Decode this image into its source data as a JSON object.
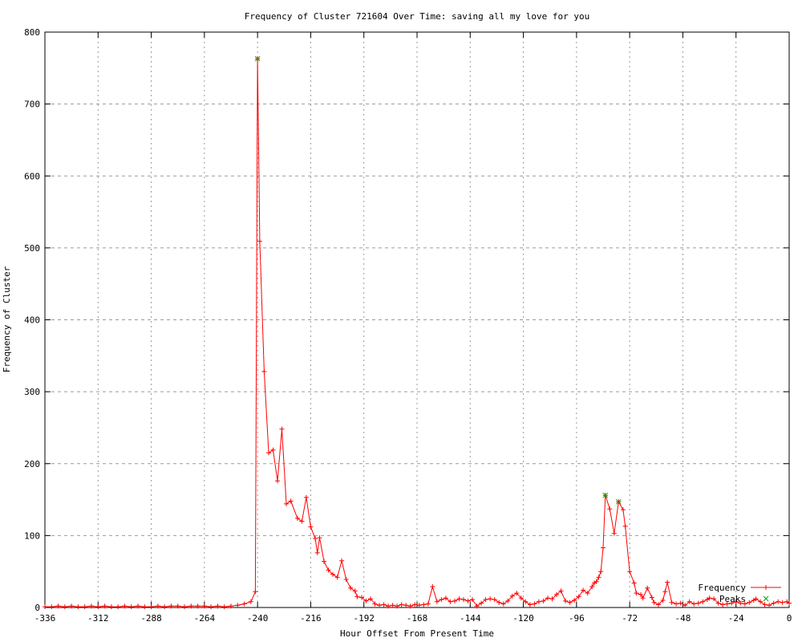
{
  "chart_data": {
    "type": "line",
    "title": "Frequency of Cluster 721604 Over Time: saving all my love for you",
    "xlabel": "Hour Offset From Present Time",
    "ylabel": "Frequency of Cluster",
    "xlim": [
      -336,
      0
    ],
    "ylim": [
      0,
      800
    ],
    "xticks": [
      -336,
      -312,
      -288,
      -264,
      -240,
      -216,
      -192,
      -168,
      -144,
      -120,
      -96,
      -72,
      -48,
      -24,
      0
    ],
    "yticks": [
      0,
      100,
      200,
      300,
      400,
      500,
      600,
      700,
      800
    ],
    "grid": true,
    "legend_position": "bottom-right",
    "colors": {
      "frequency": "#ff0000",
      "peaks": "#00a400",
      "grid": "#9a9a9a",
      "border": "#000000",
      "text": "#000000"
    },
    "legend": [
      {
        "label": "Frequency",
        "marker": "plus-line"
      },
      {
        "label": "Peaks",
        "marker": "cross"
      }
    ],
    "series": [
      {
        "name": "Frequency",
        "style": "linespoints",
        "marker": "plus",
        "color_key": "frequency",
        "points": [
          [
            -336,
            1
          ],
          [
            -333,
            1
          ],
          [
            -330,
            2
          ],
          [
            -327,
            1
          ],
          [
            -324,
            2
          ],
          [
            -321,
            1
          ],
          [
            -318,
            1
          ],
          [
            -315,
            2
          ],
          [
            -312,
            1
          ],
          [
            -309,
            2
          ],
          [
            -306,
            1
          ],
          [
            -303,
            1
          ],
          [
            -300,
            2
          ],
          [
            -297,
            1
          ],
          [
            -294,
            2
          ],
          [
            -291,
            1
          ],
          [
            -288,
            1
          ],
          [
            -285,
            2
          ],
          [
            -282,
            1
          ],
          [
            -279,
            2
          ],
          [
            -276,
            2
          ],
          [
            -273,
            1
          ],
          [
            -270,
            2
          ],
          [
            -267,
            2
          ],
          [
            -264,
            2
          ],
          [
            -261,
            1
          ],
          [
            -258,
            2
          ],
          [
            -255,
            1
          ],
          [
            -252,
            2
          ],
          [
            -249,
            3
          ],
          [
            -246,
            5
          ],
          [
            -243,
            8
          ],
          [
            -241,
            22
          ],
          [
            -240,
            763
          ],
          [
            -239,
            509
          ],
          [
            -237,
            328
          ],
          [
            -235,
            215
          ],
          [
            -233,
            219
          ],
          [
            -231,
            176
          ],
          [
            -229,
            248
          ],
          [
            -227,
            144
          ],
          [
            -225,
            148
          ],
          [
            -222,
            124
          ],
          [
            -220,
            120
          ],
          [
            -218,
            153
          ],
          [
            -216,
            112
          ],
          [
            -214,
            96
          ],
          [
            -213,
            76
          ],
          [
            -212,
            97
          ],
          [
            -210,
            64
          ],
          [
            -208,
            52
          ],
          [
            -206,
            46
          ],
          [
            -204,
            42
          ],
          [
            -202,
            65
          ],
          [
            -200,
            39
          ],
          [
            -198,
            27
          ],
          [
            -196,
            23
          ],
          [
            -195,
            15
          ],
          [
            -193,
            14
          ],
          [
            -191,
            9
          ],
          [
            -189,
            12
          ],
          [
            -187,
            5
          ],
          [
            -185,
            3
          ],
          [
            -183,
            4
          ],
          [
            -181,
            2
          ],
          [
            -179,
            3
          ],
          [
            -177,
            2
          ],
          [
            -175,
            4
          ],
          [
            -173,
            3
          ],
          [
            -171,
            2
          ],
          [
            -169,
            4
          ],
          [
            -167,
            3
          ],
          [
            -165,
            4
          ],
          [
            -163,
            5
          ],
          [
            -161,
            29
          ],
          [
            -159,
            8
          ],
          [
            -157,
            11
          ],
          [
            -155,
            13
          ],
          [
            -153,
            8
          ],
          [
            -151,
            9
          ],
          [
            -149,
            12
          ],
          [
            -147,
            11
          ],
          [
            -145,
            9
          ],
          [
            -143,
            11
          ],
          [
            -141,
            2
          ],
          [
            -139,
            6
          ],
          [
            -137,
            11
          ],
          [
            -135,
            12
          ],
          [
            -133,
            11
          ],
          [
            -131,
            7
          ],
          [
            -129,
            5
          ],
          [
            -127,
            9
          ],
          [
            -125,
            16
          ],
          [
            -123,
            20
          ],
          [
            -121,
            13
          ],
          [
            -119,
            8
          ],
          [
            -117,
            4
          ],
          [
            -115,
            5
          ],
          [
            -113,
            8
          ],
          [
            -111,
            9
          ],
          [
            -109,
            13
          ],
          [
            -107,
            12
          ],
          [
            -105,
            18
          ],
          [
            -103,
            23
          ],
          [
            -101,
            9
          ],
          [
            -99,
            7
          ],
          [
            -97,
            10
          ],
          [
            -95,
            15
          ],
          [
            -93,
            24
          ],
          [
            -91,
            20
          ],
          [
            -89,
            29
          ],
          [
            -88,
            34
          ],
          [
            -87,
            36
          ],
          [
            -86,
            42
          ],
          [
            -85,
            50
          ],
          [
            -84,
            83
          ],
          [
            -83,
            156
          ],
          [
            -81,
            137
          ],
          [
            -79,
            103
          ],
          [
            -77,
            147
          ],
          [
            -75,
            136
          ],
          [
            -74,
            113
          ],
          [
            -72,
            50
          ],
          [
            -70,
            34
          ],
          [
            -69,
            20
          ],
          [
            -67,
            18
          ],
          [
            -66,
            13
          ],
          [
            -64,
            27
          ],
          [
            -62,
            14
          ],
          [
            -61,
            7
          ],
          [
            -59,
            4
          ],
          [
            -57,
            10
          ],
          [
            -56,
            22
          ],
          [
            -55,
            35
          ],
          [
            -53,
            7
          ],
          [
            -51,
            5
          ],
          [
            -49,
            6
          ],
          [
            -47,
            3
          ],
          [
            -45,
            8
          ],
          [
            -43,
            5
          ],
          [
            -41,
            6
          ],
          [
            -39,
            8
          ],
          [
            -37,
            11
          ],
          [
            -36,
            13
          ],
          [
            -34,
            12
          ],
          [
            -32,
            6
          ],
          [
            -30,
            4
          ],
          [
            -28,
            5
          ],
          [
            -26,
            6
          ],
          [
            -24,
            8
          ],
          [
            -22,
            6
          ],
          [
            -20,
            5
          ],
          [
            -18,
            7
          ],
          [
            -16,
            10
          ],
          [
            -15,
            12
          ],
          [
            -13,
            8
          ],
          [
            -11,
            4
          ],
          [
            -9,
            3
          ],
          [
            -7,
            6
          ],
          [
            -5,
            8
          ],
          [
            -3,
            7
          ],
          [
            -1,
            8
          ],
          [
            0,
            6
          ]
        ]
      },
      {
        "name": "Peaks",
        "style": "points",
        "marker": "cross",
        "color_key": "peaks",
        "points": [
          [
            -240,
            763
          ],
          [
            -83,
            156
          ],
          [
            -77,
            147
          ]
        ]
      }
    ]
  }
}
